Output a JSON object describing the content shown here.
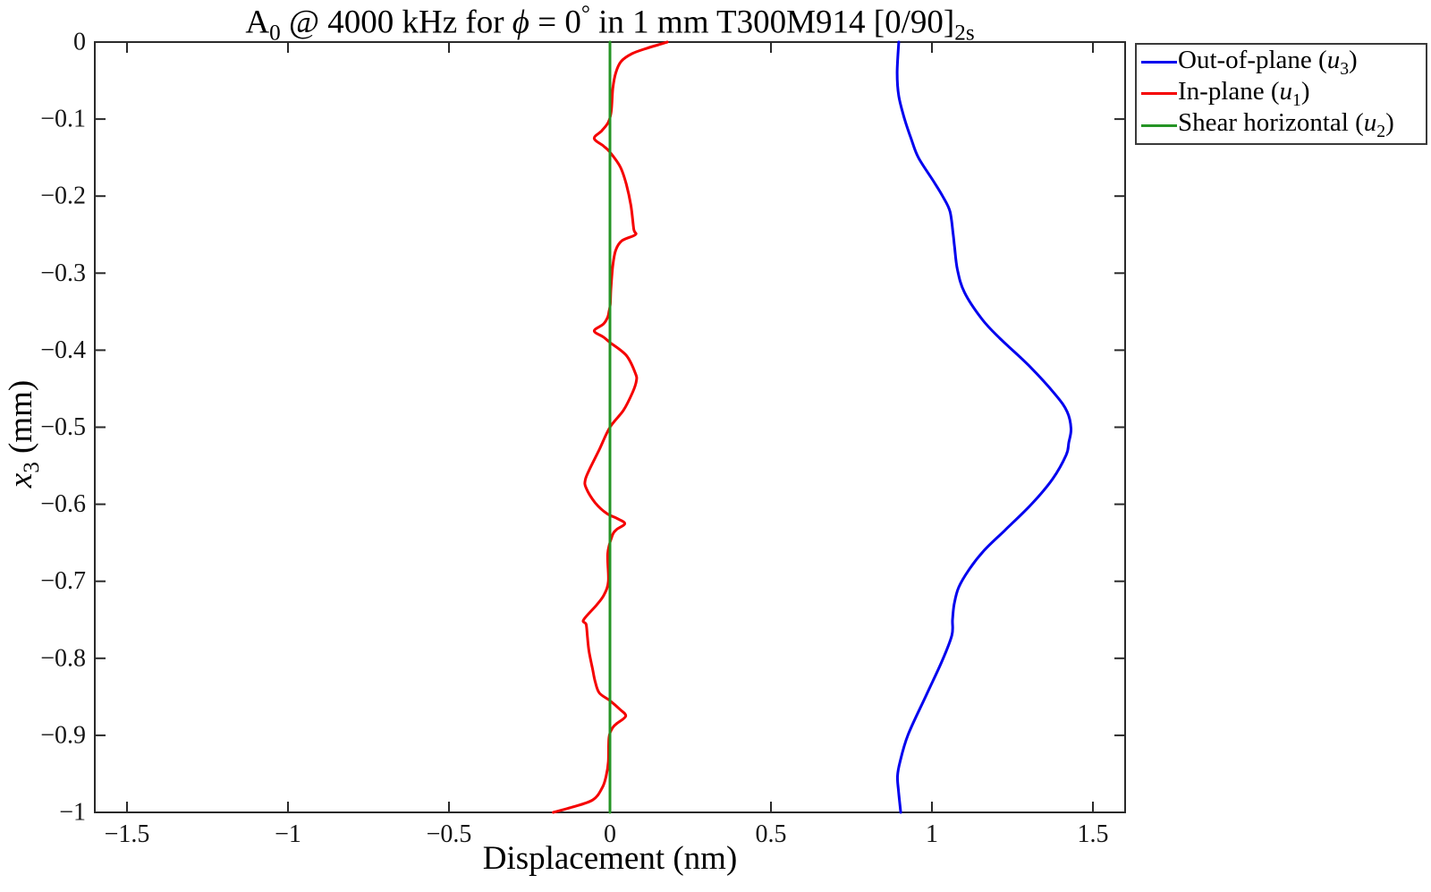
{
  "title": {
    "parts": {
      "mode": "A",
      "mode_sub": "0",
      "segment_freq": " @ 4000 kHz for ",
      "phi": "ϕ",
      "segment_eq": " = 0",
      "degree": "°",
      "segment_material": " in 1 mm T300M914 [0/90]",
      "layup_sub": "2s"
    }
  },
  "axes": {
    "xlabel": "Displacement (nm)",
    "ylabel": {
      "var": "x",
      "sub": "3",
      "rest": " (mm)"
    }
  },
  "legend": {
    "items": [
      {
        "pre": "Out-of-plane (",
        "var": "u",
        "sub": "3",
        "post": ")",
        "color": "#0000ee"
      },
      {
        "pre": "In-plane (",
        "var": "u",
        "sub": "1",
        "post": ")",
        "color": "#f50000"
      },
      {
        "pre": "Shear horizontal (",
        "var": "u",
        "sub": "2",
        "post": ")",
        "color": "#259425"
      }
    ]
  },
  "chart_data": {
    "type": "line",
    "title": "A0 @ 4000 kHz for phi = 0 deg in 1 mm T300M914 [0/90]2s",
    "xlabel": "Displacement (nm)",
    "ylabel": "x3 (mm)",
    "xlim": [
      -1.6,
      1.6
    ],
    "ylim": [
      -1,
      0
    ],
    "grid": false,
    "legend_position": "outside upper right",
    "x_ticks": {
      "values": [
        -1.5,
        -1,
        -0.5,
        0,
        0.5,
        1,
        1.5
      ],
      "labels": [
        "−1.5",
        "−1",
        "−0.5",
        "0",
        "0.5",
        "1",
        "1.5"
      ]
    },
    "y_ticks": {
      "values": [
        0,
        -0.1,
        -0.2,
        -0.3,
        -0.4,
        -0.5,
        -0.6,
        -0.7,
        -0.8,
        -0.9,
        -1
      ],
      "labels": [
        "0",
        "−0.1",
        "−0.2",
        "−0.3",
        "−0.4",
        "−0.5",
        "−0.6",
        "−0.7",
        "−0.8",
        "−0.9",
        "−1"
      ]
    },
    "series": [
      {
        "name": "Out-of-plane (u3)",
        "color": "#0000ee",
        "width": 3,
        "points": [
          [
            0.897,
            0
          ],
          [
            0.892,
            -0.04
          ],
          [
            0.897,
            -0.07
          ],
          [
            0.915,
            -0.1
          ],
          [
            0.935,
            -0.125
          ],
          [
            0.958,
            -0.15
          ],
          [
            1.004,
            -0.18
          ],
          [
            1.033,
            -0.2
          ],
          [
            1.056,
            -0.22
          ],
          [
            1.066,
            -0.25
          ],
          [
            1.07,
            -0.265
          ],
          [
            1.079,
            -0.295
          ],
          [
            1.101,
            -0.325
          ],
          [
            1.156,
            -0.36
          ],
          [
            1.212,
            -0.385
          ],
          [
            1.301,
            -0.42
          ],
          [
            1.384,
            -0.458
          ],
          [
            1.42,
            -0.48
          ],
          [
            1.432,
            -0.502
          ],
          [
            1.425,
            -0.52
          ],
          [
            1.417,
            -0.536
          ],
          [
            1.375,
            -0.567
          ],
          [
            1.309,
            -0.6
          ],
          [
            1.226,
            -0.634
          ],
          [
            1.162,
            -0.66
          ],
          [
            1.115,
            -0.685
          ],
          [
            1.083,
            -0.708
          ],
          [
            1.069,
            -0.73
          ],
          [
            1.064,
            -0.75
          ],
          [
            1.062,
            -0.77
          ],
          [
            1.032,
            -0.803
          ],
          [
            0.981,
            -0.849
          ],
          [
            0.926,
            -0.899
          ],
          [
            0.901,
            -0.934
          ],
          [
            0.893,
            -0.953
          ],
          [
            0.896,
            -0.972
          ],
          [
            0.903,
            -1.0
          ]
        ]
      },
      {
        "name": "In-plane (u1)",
        "color": "#f50000",
        "width": 3,
        "points": [
          [
            0.178,
            0
          ],
          [
            0.155,
            -0.003
          ],
          [
            0.115,
            -0.008
          ],
          [
            0.069,
            -0.015
          ],
          [
            0.035,
            -0.025
          ],
          [
            0.018,
            -0.04
          ],
          [
            0.009,
            -0.06
          ],
          [
            0.004,
            -0.09
          ],
          [
            -0.005,
            -0.104
          ],
          [
            -0.025,
            -0.115
          ],
          [
            -0.049,
            -0.125
          ],
          [
            -0.02,
            -0.135
          ],
          [
            0.0,
            -0.143
          ],
          [
            0.032,
            -0.162
          ],
          [
            0.051,
            -0.185
          ],
          [
            0.065,
            -0.212
          ],
          [
            0.074,
            -0.243
          ],
          [
            0.079,
            -0.25
          ],
          [
            0.037,
            -0.258
          ],
          [
            0.018,
            -0.27
          ],
          [
            0.009,
            -0.29
          ],
          [
            0.003,
            -0.32
          ],
          [
            0.001,
            -0.34
          ],
          [
            -0.003,
            -0.35
          ],
          [
            -0.007,
            -0.357
          ],
          [
            -0.02,
            -0.366
          ],
          [
            -0.049,
            -0.375
          ],
          [
            -0.02,
            -0.383
          ],
          [
            0.0,
            -0.39
          ],
          [
            0.051,
            -0.407
          ],
          [
            0.079,
            -0.43
          ],
          [
            0.082,
            -0.44
          ],
          [
            0.07,
            -0.455
          ],
          [
            0.042,
            -0.478
          ],
          [
            0.0,
            -0.5
          ],
          [
            -0.033,
            -0.529
          ],
          [
            -0.065,
            -0.556
          ],
          [
            -0.077,
            -0.569
          ],
          [
            -0.074,
            -0.579
          ],
          [
            -0.046,
            -0.598
          ],
          [
            -0.01,
            -0.612
          ],
          [
            0.02,
            -0.618
          ],
          [
            0.046,
            -0.625
          ],
          [
            0.02,
            -0.633
          ],
          [
            0.007,
            -0.641
          ],
          [
            -0.007,
            -0.664
          ],
          [
            -0.005,
            -0.7
          ],
          [
            -0.019,
            -0.718
          ],
          [
            -0.042,
            -0.731
          ],
          [
            -0.082,
            -0.75
          ],
          [
            -0.074,
            -0.756
          ],
          [
            -0.07,
            -0.772
          ],
          [
            -0.065,
            -0.791
          ],
          [
            -0.054,
            -0.814
          ],
          [
            -0.046,
            -0.83
          ],
          [
            -0.033,
            -0.845
          ],
          [
            0.0,
            -0.855
          ],
          [
            0.03,
            -0.866
          ],
          [
            0.049,
            -0.875
          ],
          [
            0.02,
            -0.885
          ],
          [
            0.007,
            -0.891
          ],
          [
            -0.003,
            -0.903
          ],
          [
            -0.005,
            -0.934
          ],
          [
            -0.012,
            -0.953
          ],
          [
            -0.024,
            -0.968
          ],
          [
            -0.054,
            -0.984
          ],
          [
            -0.124,
            -0.994
          ],
          [
            -0.176,
            -1.0
          ]
        ]
      },
      {
        "name": "Shear horizontal (u2)",
        "color": "#259425",
        "width": 3,
        "points": [
          [
            0.0,
            0
          ],
          [
            0.0,
            -1.0
          ]
        ]
      }
    ]
  }
}
